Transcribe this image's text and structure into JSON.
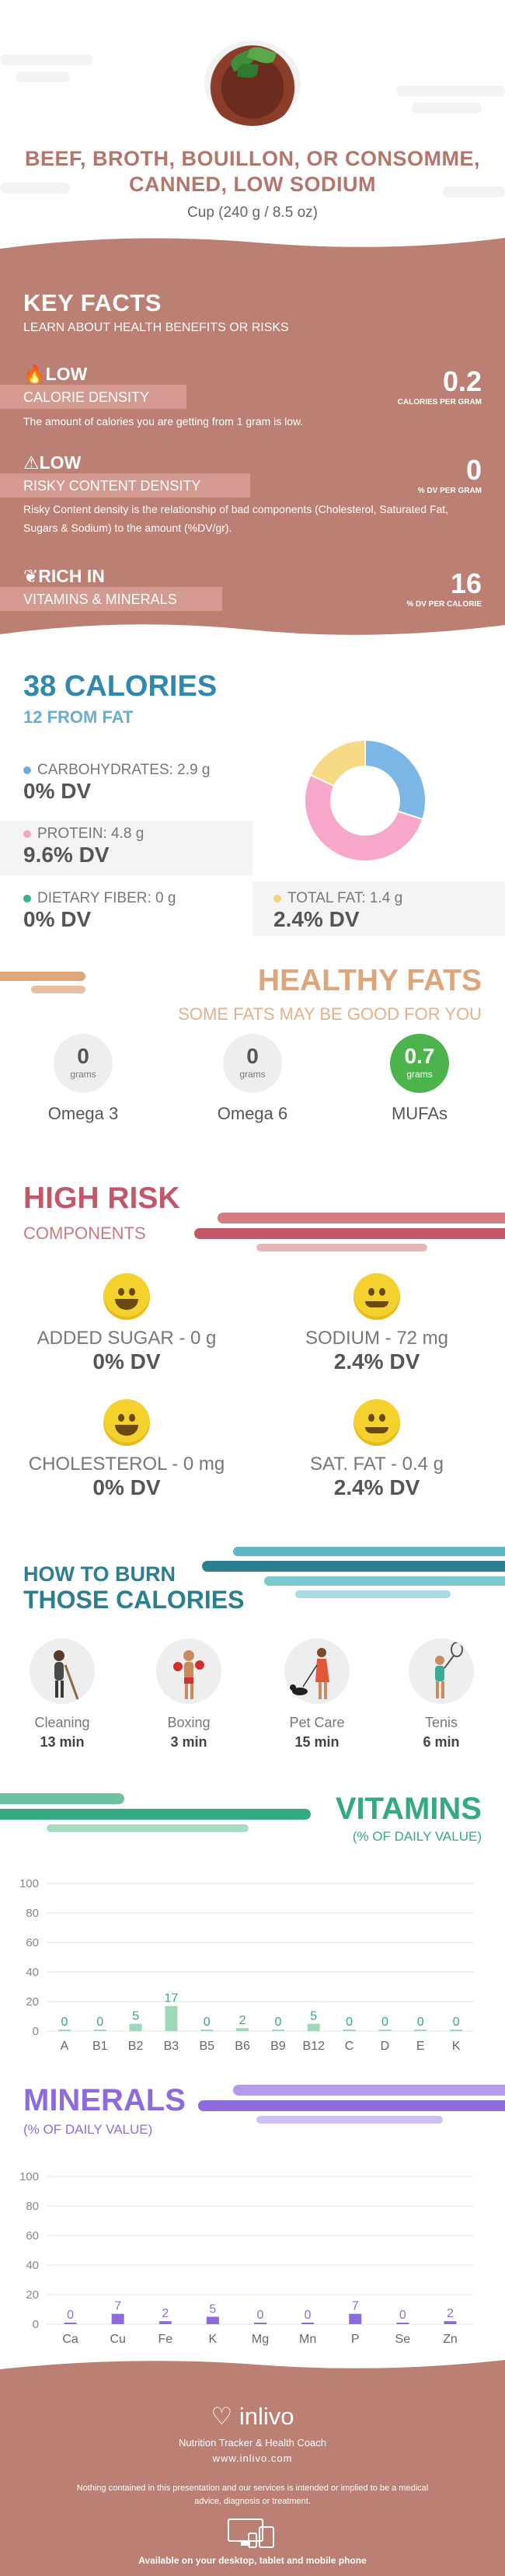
{
  "header": {
    "title": "BEEF, BROTH, BOUILLON, OR CONSOMME, CANNED, LOW SODIUM",
    "serving": "Cup (240 g / 8.5 oz)"
  },
  "key_facts": {
    "heading": "KEY FACTS",
    "subheading": "LEARN ABOUT HEALTH BENEFITS OR RISKS",
    "items": [
      {
        "level": "LOW",
        "name": "CALORIE DENSITY",
        "value": "0.2",
        "unit": "CALORIES PER GRAM",
        "desc": "The amount of calories you are getting from 1 gram is low.",
        "icon": "flame-icon"
      },
      {
        "level": "LOW",
        "name": "RISKY CONTENT DENSITY",
        "value": "0",
        "unit": "% DV PER GRAM",
        "desc": "Risky Content density is the relationship of bad components (Cholesterol, Saturated Fat, Sugars & Sodium) to the amount (%DV/gr).",
        "icon": "warning-icon"
      },
      {
        "level": "RICH  IN",
        "name": "VITAMINS & MINERALS",
        "value": "16",
        "unit": "% DV PER CALORIE",
        "desc": "",
        "icon": "leaf-icon"
      }
    ]
  },
  "calories": {
    "total": "38 CALORIES",
    "from_fat": "12 FROM FAT",
    "nutrients": [
      {
        "label": "CARBOHYDRATES: 2.9 g",
        "dv": "0% DV",
        "color": "#6aaee0"
      },
      {
        "label": "PROTEIN: 4.8 g",
        "dv": "9.6% DV",
        "color": "#f5a6c8"
      },
      {
        "label": "DIETARY FIBER: 0 g",
        "dv": "0% DV",
        "color": "#3bb08f"
      },
      {
        "label": "TOTAL FAT: 1.4 g",
        "dv": "2.4% DV",
        "color": "#f7d27a"
      }
    ]
  },
  "chart_data": {
    "type": "pie",
    "categories": [
      "Carbohydrates",
      "Protein",
      "Total Fat"
    ],
    "values": [
      30,
      52,
      18
    ],
    "colors": [
      "#7ab6e6",
      "#f7a8ca",
      "#f7d883"
    ]
  },
  "healthy_fats": {
    "title": "HEALTHY FATS",
    "subtitle": "SOME FATS MAY BE GOOD FOR YOU",
    "items": [
      {
        "value": "0",
        "unit": "grams",
        "name": "Omega 3"
      },
      {
        "value": "0",
        "unit": "grams",
        "name": "Omega 6"
      },
      {
        "value": "0.7",
        "unit": "grams",
        "name": "MUFAs"
      }
    ]
  },
  "high_risk": {
    "title": "HIGH RISK",
    "subtitle": "COMPONENTS",
    "items": [
      {
        "label": "ADDED SUGAR - 0 g",
        "dv": "0% DV"
      },
      {
        "label": "SODIUM - 72 mg",
        "dv": "2.4% DV"
      },
      {
        "label": "CHOLESTEROL - 0 mg",
        "dv": "0% DV"
      },
      {
        "label": "SAT. FAT - 0.4 g",
        "dv": "2.4% DV"
      }
    ]
  },
  "burn": {
    "title1": "HOW TO BURN",
    "title2": "THOSE CALORIES",
    "activities": [
      {
        "name": "Cleaning",
        "minutes": "13 min"
      },
      {
        "name": "Boxing",
        "minutes": "3 min"
      },
      {
        "name": "Pet Care",
        "minutes": "15 min"
      },
      {
        "name": "Tenis",
        "minutes": "6 min"
      }
    ]
  },
  "vitamins": {
    "title": "VITAMINS",
    "subtitle": "(% OF DAILY VALUE)",
    "y_ticks": [
      "100",
      "80",
      "60",
      "40",
      "20",
      "0"
    ],
    "categories": [
      "A",
      "B1",
      "B2",
      "B3",
      "B5",
      "B6",
      "B9",
      "B12",
      "C",
      "D",
      "E",
      "K"
    ],
    "values": [
      0,
      0,
      5,
      17,
      0,
      2,
      0,
      5,
      0,
      0,
      0,
      0
    ],
    "color": "#9ed9b7",
    "label_color": "#35a884"
  },
  "minerals": {
    "title": "MINERALS",
    "subtitle": "(% OF DAILY VALUE)",
    "y_ticks": [
      "100",
      "80",
      "60",
      "40",
      "20",
      "0"
    ],
    "categories": [
      "Ca",
      "Cu",
      "Fe",
      "K",
      "Mg",
      "Mn",
      "P",
      "Se",
      "Zn"
    ],
    "values": [
      0,
      7,
      2,
      5,
      0,
      0,
      7,
      0,
      2
    ],
    "color": "#8e6bdc",
    "label_color": "#8e6bdc"
  },
  "footer": {
    "brand": "inlivo",
    "tagline": "Nutrition Tracker & Health Coach",
    "url": "www.inlivo.com",
    "disclaimer": "Nothing contained in this presentation and our services is intended or implied to be a medical advice, diagnosis or treatment.",
    "available": "Available on your desktop, tablet and mobile phone"
  }
}
